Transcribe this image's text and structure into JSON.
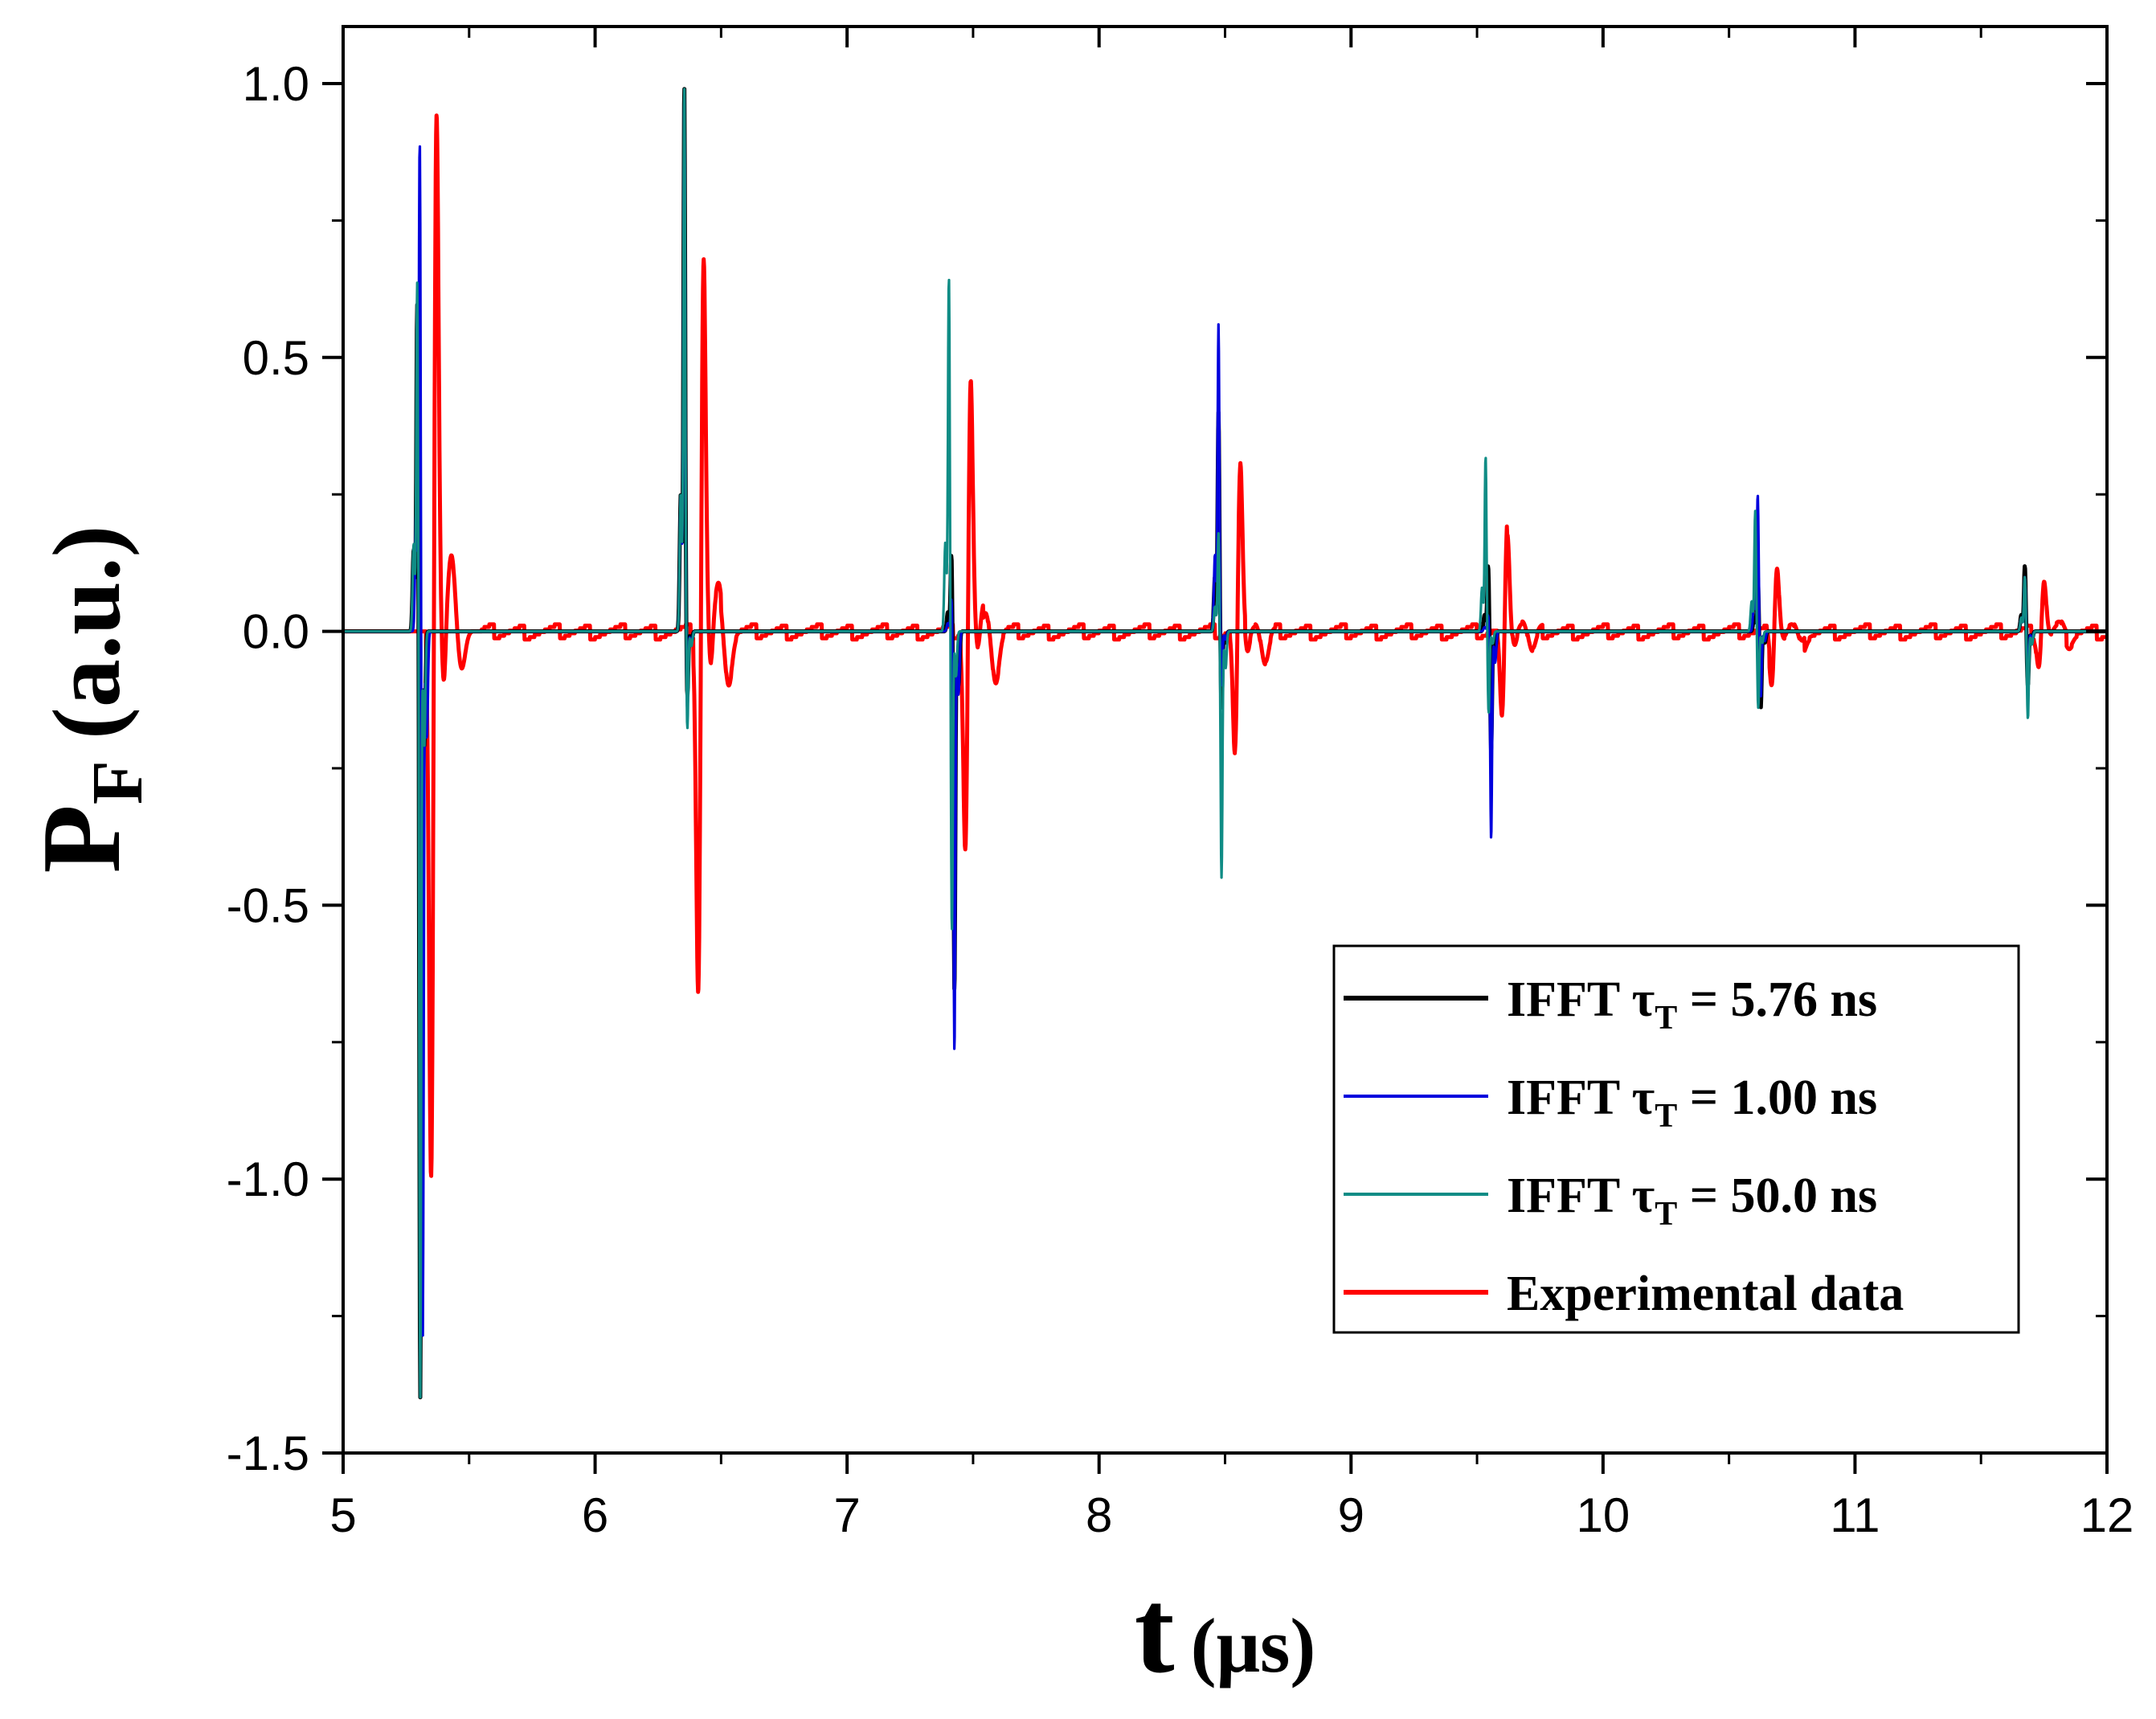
{
  "chart_data": {
    "type": "line",
    "title": "",
    "xlabel": {
      "main": "t",
      "unit": "(μs)"
    },
    "ylabel": {
      "main": "P",
      "subscript": "F",
      "unit": "(a.u.)"
    },
    "xlim": [
      5,
      12
    ],
    "ylim": [
      -1.5,
      1.1
    ],
    "xticks": [
      5,
      6,
      7,
      8,
      9,
      10,
      11,
      12
    ],
    "xtick_labels": [
      "5",
      "6",
      "7",
      "8",
      "9",
      "10",
      "11",
      "12"
    ],
    "yticks": [
      -1.5,
      -1.0,
      -0.5,
      0.0,
      0.5,
      1.0
    ],
    "ytick_labels": [
      "-1.5",
      "-1.0",
      "-0.5",
      "0.0",
      "0.5",
      "1.0"
    ],
    "grid": false,
    "legend_position": "lower-right",
    "series": [
      {
        "name": "IFFT τT = 5.76 ns",
        "legend": {
          "prefix": "IFFT τ",
          "sub": "T",
          "suffix": " = 5.76 ns"
        },
        "color": "#000000",
        "style": "thick",
        "echoes": [
          {
            "t": 5.3,
            "pos": 0.6,
            "neg": -1.4
          },
          {
            "t": 6.36,
            "pos": 1.0,
            "neg": -0.12
          },
          {
            "t": 7.42,
            "pos": 0.14,
            "neg": -0.66
          },
          {
            "t": 8.48,
            "pos": 0.4,
            "neg": -0.14
          },
          {
            "t": 9.55,
            "pos": 0.12,
            "neg": -0.22
          },
          {
            "t": 10.62,
            "pos": 0.1,
            "neg": -0.14
          },
          {
            "t": 11.68,
            "pos": 0.12,
            "neg": -0.1
          }
        ]
      },
      {
        "name": "IFFT τT = 1.00 ns",
        "legend": {
          "prefix": "IFFT τ",
          "sub": "T",
          "suffix": " = 1.00 ns"
        },
        "color": "#0000dd",
        "style": "thin",
        "echoes": [
          {
            "t": 5.31,
            "pos": 0.9,
            "neg": -1.3
          },
          {
            "t": 6.36,
            "pos": 0.98,
            "neg": -0.15
          },
          {
            "t": 7.42,
            "pos": 0.06,
            "neg": -0.77
          },
          {
            "t": 8.48,
            "pos": 0.56,
            "neg": -0.1
          },
          {
            "t": 9.55,
            "pos": 0.03,
            "neg": -0.38
          },
          {
            "t": 10.62,
            "pos": 0.25,
            "neg": -0.12
          },
          {
            "t": 11.68,
            "pos": 0.1,
            "neg": -0.1
          }
        ]
      },
      {
        "name": "IFFT τT = 50.0 ns",
        "legend": {
          "prefix": "IFFT τ",
          "sub": "T",
          "suffix": " = 50.0 ns"
        },
        "color": "#0f8c85",
        "style": "thin",
        "echoes": [
          {
            "t": 5.3,
            "pos": 0.64,
            "neg": -1.4
          },
          {
            "t": 6.36,
            "pos": 1.0,
            "neg": -0.18
          },
          {
            "t": 7.41,
            "pos": 0.65,
            "neg": -0.55
          },
          {
            "t": 8.48,
            "pos": 0.18,
            "neg": -0.45
          },
          {
            "t": 9.54,
            "pos": 0.32,
            "neg": -0.15
          },
          {
            "t": 10.61,
            "pos": 0.22,
            "neg": -0.14
          },
          {
            "t": 11.68,
            "pos": 0.1,
            "neg": -0.16
          }
        ]
      },
      {
        "name": "Experimental data",
        "legend": {
          "prefix": "Experimental data",
          "sub": "",
          "suffix": ""
        },
        "color": "#ff0000",
        "style": "thick",
        "echoes": [
          {
            "t": 5.37,
            "pos": 1.0,
            "neg": -1.05,
            "pos2": 0.14,
            "neg2": -0.07
          },
          {
            "t": 6.43,
            "pos": 0.72,
            "neg": -0.69,
            "pos2": 0.08,
            "neg2": -0.09
          },
          {
            "t": 7.49,
            "pos": 0.48,
            "neg": -0.42,
            "pos2": 0.05,
            "neg2": -0.09
          },
          {
            "t": 8.56,
            "pos": 0.31,
            "neg": -0.24,
            "pos2": 0.02,
            "neg2": -0.06
          },
          {
            "t": 9.62,
            "pos": 0.2,
            "neg": -0.17,
            "pos2": 0.02,
            "neg2": -0.04
          },
          {
            "t": 10.69,
            "pos": 0.13,
            "neg": -0.09,
            "pos2": 0.01,
            "neg2": -0.03
          },
          {
            "t": 11.75,
            "pos": 0.1,
            "neg": -0.06,
            "pos2": 0.01,
            "neg2": -0.02
          }
        ]
      }
    ]
  }
}
